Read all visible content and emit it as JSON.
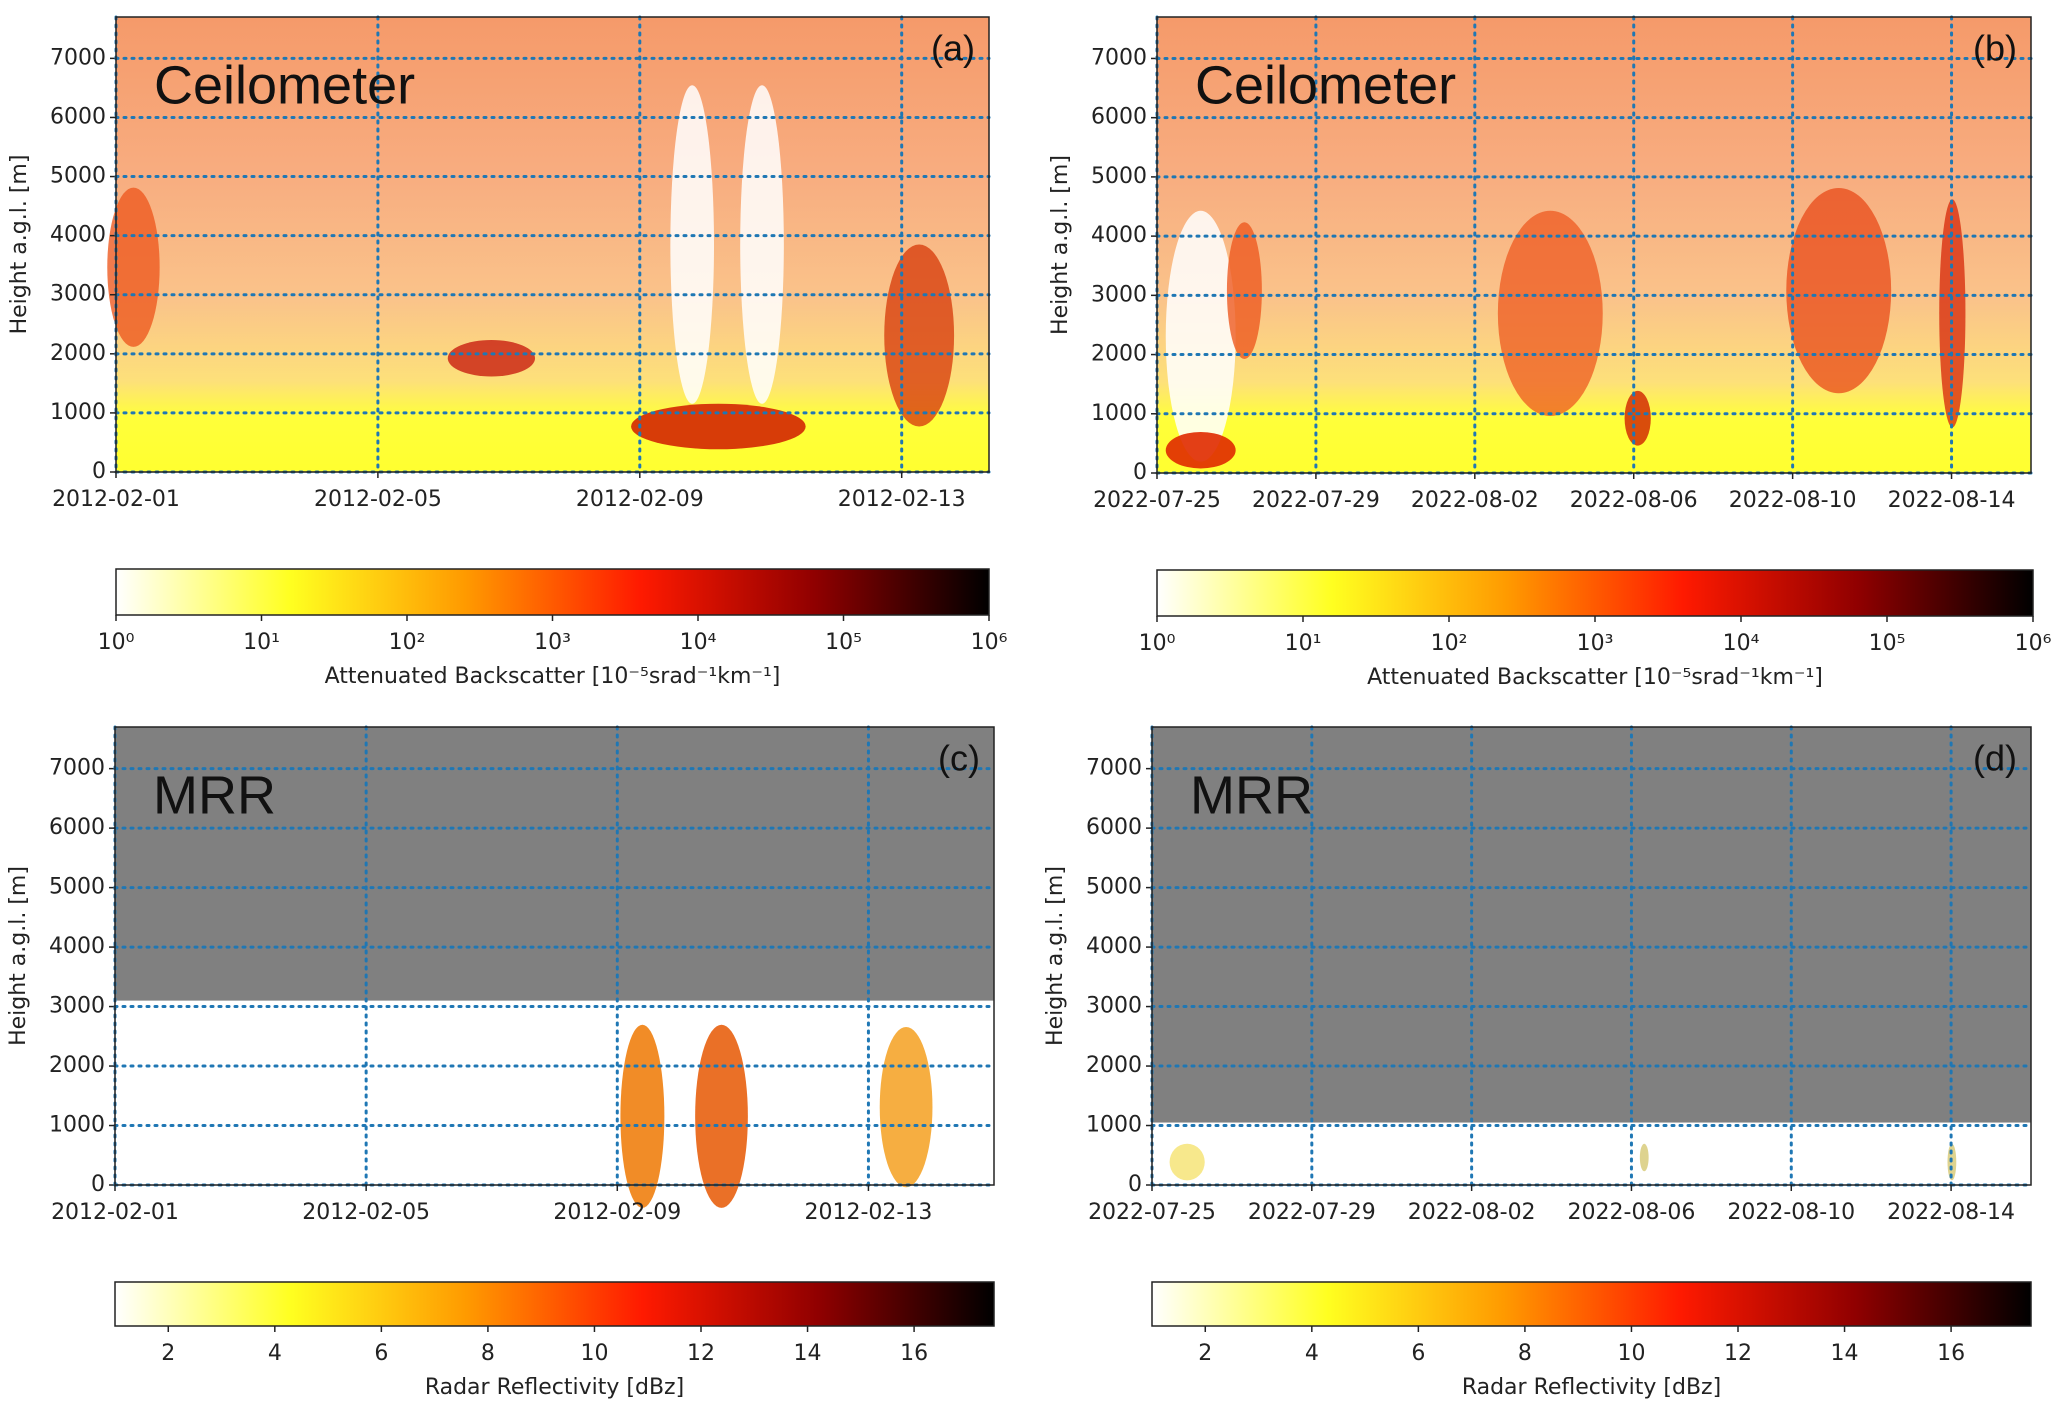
{
  "chart_data": [
    {
      "type": "heatmap",
      "panel_label": "(a)",
      "instrument": "Ceilometer",
      "y_label": "Height a.g.l. [m]",
      "xlim": [
        "2012-02-01",
        "2012-02-14T08:00"
      ],
      "xticks": [
        "2012-02-01",
        "2012-02-05",
        "2012-02-09",
        "2012-02-13"
      ],
      "ylim": [
        0,
        7700
      ],
      "yticks": [
        0,
        1000,
        2000,
        3000,
        4000,
        5000,
        6000,
        7000
      ],
      "grid": true,
      "colorbar": {
        "label": "Attenuated Backscatter [10⁻⁵srad⁻¹km⁻¹]",
        "log": true,
        "lim": [
          1,
          1000000
        ],
        "ticks": [
          {
            "value": 1,
            "label": "10⁰"
          },
          {
            "value": 10,
            "label": "10¹"
          },
          {
            "value": 100,
            "label": "10²"
          },
          {
            "value": 1000,
            "label": "10³"
          },
          {
            "value": 10000,
            "label": "10⁴"
          },
          {
            "value": 100000,
            "label": "10⁵"
          },
          {
            "value": 1000000,
            "label": "10⁶"
          }
        ],
        "colormap": [
          "#ffffff",
          "#ffff20",
          "#ff9a00",
          "#ff1a00",
          "#900000",
          "#000000"
        ]
      }
    },
    {
      "type": "heatmap",
      "panel_label": "(b)",
      "instrument": "Ceilometer",
      "y_label": "Height a.g.l. [m]",
      "xlim": [
        "2022-07-25",
        "2022-08-16"
      ],
      "xticks": [
        "2022-07-25",
        "2022-07-29",
        "2022-08-02",
        "2022-08-06",
        "2022-08-10",
        "2022-08-14"
      ],
      "ylim": [
        0,
        7700
      ],
      "yticks": [
        0,
        1000,
        2000,
        3000,
        4000,
        5000,
        6000,
        7000
      ],
      "grid": true,
      "colorbar": {
        "label": "Attenuated Backscatter [10⁻⁵srad⁻¹km⁻¹]",
        "log": true,
        "lim": [
          1,
          1000000
        ],
        "ticks": [
          {
            "value": 1,
            "label": "10⁰"
          },
          {
            "value": 10,
            "label": "10¹"
          },
          {
            "value": 100,
            "label": "10²"
          },
          {
            "value": 1000,
            "label": "10³"
          },
          {
            "value": 10000,
            "label": "10⁴"
          },
          {
            "value": 100000,
            "label": "10⁵"
          },
          {
            "value": 1000000,
            "label": "10⁶"
          }
        ],
        "colormap": [
          "#ffffff",
          "#ffff20",
          "#ff9a00",
          "#ff1a00",
          "#900000",
          "#000000"
        ]
      }
    },
    {
      "type": "heatmap",
      "panel_label": "(c)",
      "instrument": "MRR",
      "y_label": "Height a.g.l. [m]",
      "xlim": [
        "2012-02-01",
        "2012-02-15"
      ],
      "xticks": [
        "2012-02-01",
        "2012-02-05",
        "2012-02-09",
        "2012-02-13"
      ],
      "ylim": [
        0,
        7700
      ],
      "yticks": [
        0,
        1000,
        2000,
        3000,
        4000,
        5000,
        6000,
        7000
      ],
      "grid": true,
      "no_data_above": 3100,
      "no_data_color": "#808080",
      "colorbar": {
        "label": "Radar Reflectivity [dBz]",
        "log": false,
        "lim": [
          1,
          17.5
        ],
        "ticks": [
          2,
          4,
          6,
          8,
          10,
          12,
          14,
          16
        ],
        "colormap": [
          "#ffffff",
          "#ffff20",
          "#ff9a00",
          "#ff1a00",
          "#900000",
          "#000000"
        ]
      }
    },
    {
      "type": "heatmap",
      "panel_label": "(d)",
      "instrument": "MRR",
      "y_label": "Height a.g.l. [m]",
      "xlim": [
        "2022-07-25",
        "2022-08-16"
      ],
      "xticks": [
        "2022-07-25",
        "2022-07-29",
        "2022-08-02",
        "2022-08-06",
        "2022-08-10",
        "2022-08-14"
      ],
      "ylim": [
        0,
        7700
      ],
      "yticks": [
        0,
        1000,
        2000,
        3000,
        4000,
        5000,
        6000,
        7000
      ],
      "grid": true,
      "no_data_above": 1050,
      "no_data_color": "#808080",
      "colorbar": {
        "label": "Radar Reflectivity [dBz]",
        "log": false,
        "lim": [
          1,
          17.5
        ],
        "ticks": [
          2,
          4,
          6,
          8,
          10,
          12,
          14,
          16
        ],
        "colormap": [
          "#ffffff",
          "#ffff20",
          "#ff9a00",
          "#ff1a00",
          "#900000",
          "#000000"
        ]
      }
    }
  ]
}
